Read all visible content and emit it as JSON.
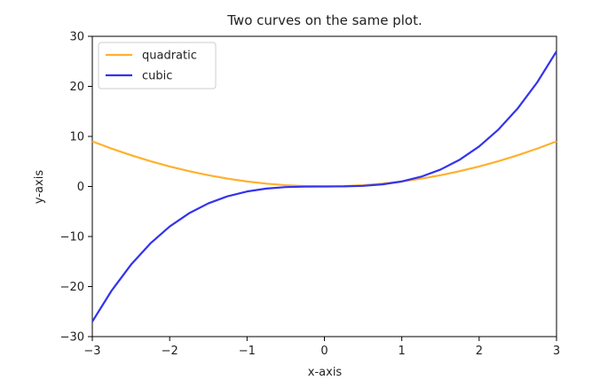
{
  "chart_data": {
    "type": "line",
    "title": "Two curves on the same plot.",
    "xlabel": "x-axis",
    "ylabel": "y-axis",
    "xlim": [
      -3,
      3
    ],
    "ylim": [
      -30,
      30
    ],
    "xticks": [
      -3,
      -2,
      -1,
      0,
      1,
      2,
      3
    ],
    "yticks": [
      -30,
      -20,
      -10,
      0,
      10,
      20,
      30
    ],
    "xtick_labels": [
      "−3",
      "−2",
      "−1",
      "0",
      "1",
      "2",
      "3"
    ],
    "ytick_labels": [
      "−30",
      "−20",
      "−10",
      "0",
      "10",
      "20",
      "30"
    ],
    "grid": false,
    "legend_position": "top-left",
    "x": [
      -3,
      -2.75,
      -2.5,
      -2.25,
      -2,
      -1.75,
      -1.5,
      -1.25,
      -1,
      -0.75,
      -0.5,
      -0.25,
      0,
      0.25,
      0.5,
      0.75,
      1,
      1.25,
      1.5,
      1.75,
      2,
      2.25,
      2.5,
      2.75,
      3
    ],
    "series": [
      {
        "name": "quadratic",
        "color": "#ffb02e",
        "values": [
          9,
          7.5625,
          6.25,
          5.0625,
          4,
          3.0625,
          2.25,
          1.5625,
          1,
          0.5625,
          0.25,
          0.0625,
          0,
          0.0625,
          0.25,
          0.5625,
          1,
          1.5625,
          2.25,
          3.0625,
          4,
          5.0625,
          6.25,
          7.5625,
          9
        ]
      },
      {
        "name": "cubic",
        "color": "#3333ee",
        "values": [
          -27,
          -20.797,
          -15.625,
          -11.391,
          -8,
          -5.359,
          -3.375,
          -1.953,
          -1,
          -0.422,
          -0.125,
          -0.016,
          0,
          0.016,
          0.125,
          0.422,
          1,
          1.953,
          3.375,
          5.359,
          8,
          11.391,
          15.625,
          20.797,
          27
        ]
      }
    ]
  }
}
